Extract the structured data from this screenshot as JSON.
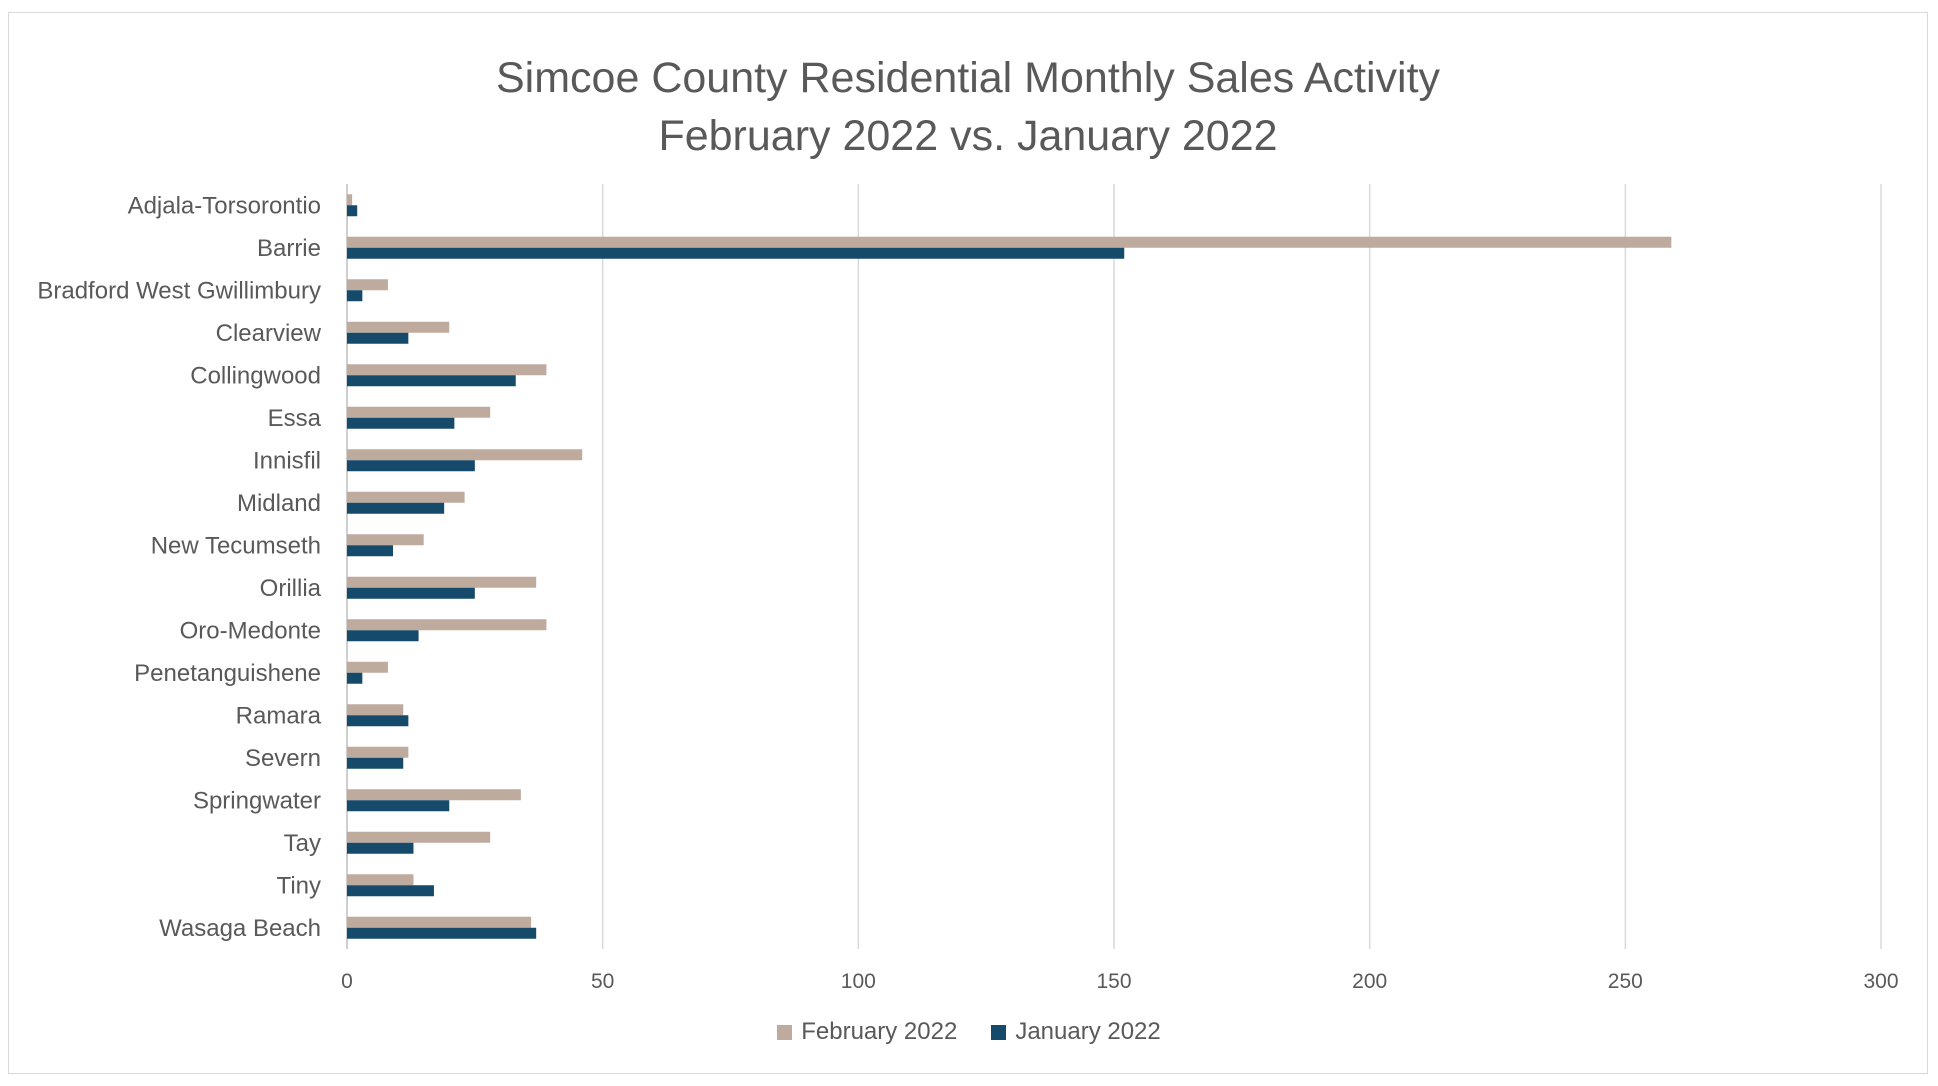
{
  "chart_data": {
    "type": "bar",
    "orientation": "horizontal",
    "title": "Simcoe County Residential Monthly Sales Activity",
    "subtitle": "February 2022 vs. January 2022",
    "categories": [
      "Adjala-Torsorontio",
      "Barrie",
      "Bradford West Gwillimbury",
      "Clearview",
      "Collingwood",
      "Essa",
      "Innisfil",
      "Midland",
      "New Tecumseth",
      "Orillia",
      "Oro-Medonte",
      "Penetanguishene",
      "Ramara",
      "Severn",
      "Springwater",
      "Tay",
      "Tiny",
      "Wasaga Beach"
    ],
    "series": [
      {
        "name": "February 2022",
        "color": "#bfaa9e",
        "values": [
          1,
          259,
          8,
          20,
          39,
          28,
          46,
          23,
          15,
          37,
          39,
          8,
          11,
          12,
          34,
          28,
          13,
          36
        ]
      },
      {
        "name": "January 2022",
        "color": "#164a6b",
        "values": [
          2,
          152,
          3,
          12,
          33,
          21,
          25,
          19,
          9,
          25,
          14,
          3,
          12,
          11,
          20,
          13,
          17,
          37
        ]
      }
    ],
    "xlim": [
      0,
      300
    ],
    "xticks": [
      0,
      50,
      100,
      150,
      200,
      250,
      300
    ],
    "xlabel": "",
    "ylabel": "",
    "grid": true,
    "legend_position": "bottom"
  }
}
